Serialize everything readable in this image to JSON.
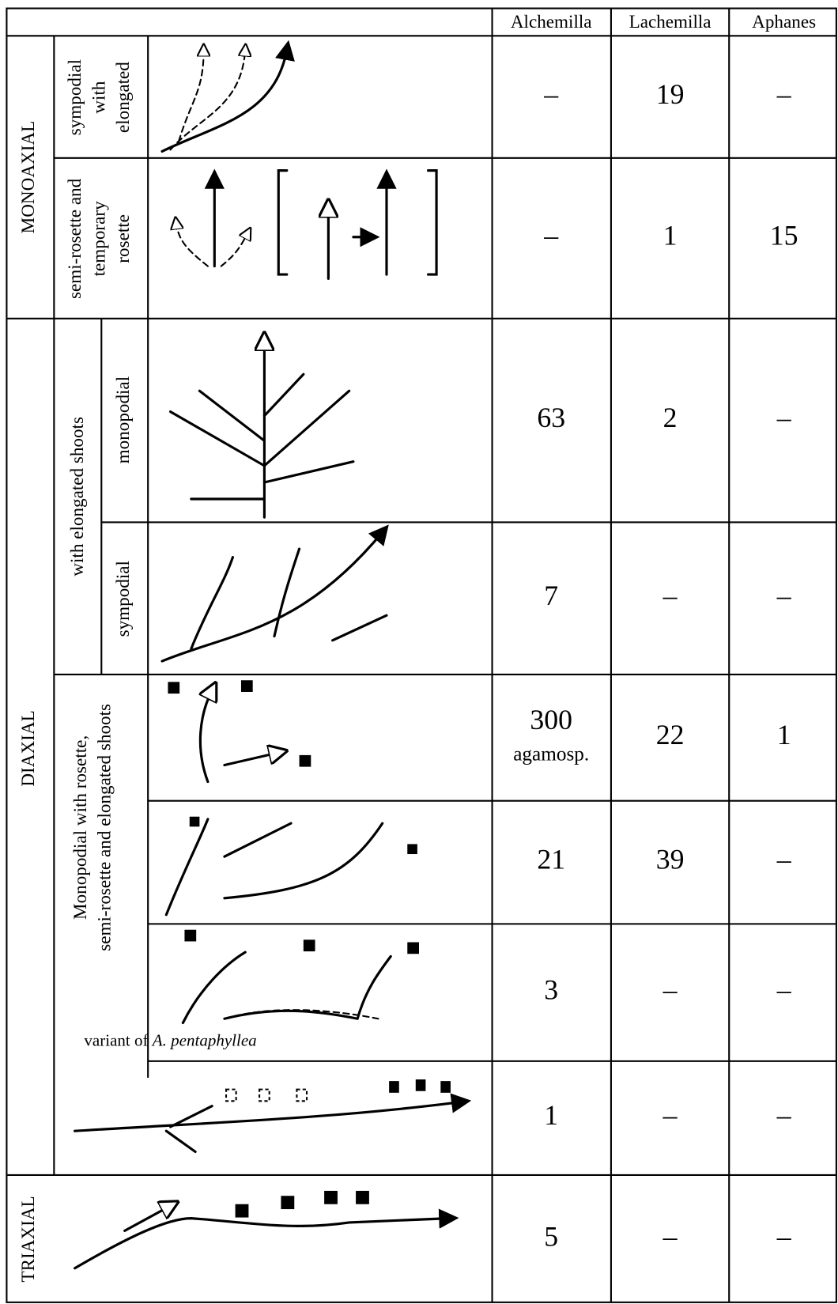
{
  "header": {
    "columns": [
      "Alchemilla",
      "Lachemilla",
      "Aphanes"
    ]
  },
  "groups": [
    "MONOAXIAL",
    "DIAXIAL",
    "TRIAXIAL"
  ],
  "subgroups": [
    {
      "lines": [
        "sympodial",
        "with",
        "elongated"
      ]
    },
    {
      "lines": [
        "semi-rosette and",
        "temporary",
        "rosette"
      ]
    },
    {
      "lines": [
        "with elongated shoots"
      ]
    },
    {
      "lines": [
        "monopodial"
      ]
    },
    {
      "lines": [
        "sympodial"
      ]
    },
    {
      "lines": [
        "Monopodial with rosette,",
        "semi-rosette and elongated shoots"
      ]
    }
  ],
  "caption": {
    "text": "variant of",
    "italic": "A. pentaphyllea"
  },
  "rows": [
    {
      "values": [
        "–",
        "19",
        "–"
      ]
    },
    {
      "values": [
        "–",
        "1",
        "15"
      ]
    },
    {
      "values": [
        "63",
        "2",
        "–"
      ]
    },
    {
      "values": [
        "7",
        "–",
        "–"
      ]
    },
    {
      "values": [
        "300",
        "22",
        "1"
      ],
      "note": "agamosp."
    },
    {
      "values": [
        "21",
        "39",
        "–"
      ]
    },
    {
      "values": [
        "3",
        "–",
        "–"
      ]
    },
    {
      "values": [
        "1",
        "–",
        "–"
      ]
    },
    {
      "values": [
        "5",
        "–",
        "–"
      ]
    }
  ]
}
